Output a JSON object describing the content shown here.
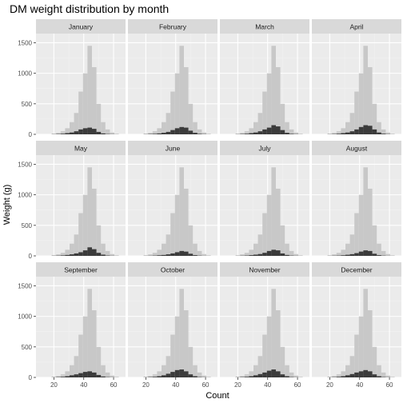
{
  "chart_data": {
    "type": "bar",
    "title": "DM weight distribution by month",
    "xlabel": "Count",
    "ylabel": "Weight (g)",
    "xlim": [
      8,
      68
    ],
    "ylim": [
      0,
      1650
    ],
    "x_ticks": [
      20,
      40,
      60
    ],
    "y_ticks": [
      0,
      500,
      1000,
      1500
    ],
    "grid": true,
    "colors": {
      "panel_background": "#ebebeb",
      "strip_background": "#d9d9d9",
      "grid_major": "#ffffff",
      "grid_minor": "#f2f2f2",
      "all_data_bars": "#c8c8c8",
      "month_bars": "#3b3b3b"
    },
    "bin_centers": [
      14,
      17,
      20,
      23,
      26,
      29,
      32,
      35,
      38,
      41,
      44,
      47,
      50,
      53,
      56,
      59,
      62,
      65
    ],
    "all_data_values": [
      0,
      0,
      10,
      25,
      50,
      100,
      200,
      350,
      700,
      1000,
      1450,
      1100,
      500,
      200,
      80,
      30,
      10,
      0
    ],
    "panels": [
      {
        "month": "January",
        "values": [
          0,
          0,
          2,
          5,
          10,
          20,
          30,
          50,
          80,
          100,
          110,
          90,
          40,
          15,
          5,
          2,
          0,
          0
        ]
      },
      {
        "month": "February",
        "values": [
          0,
          0,
          2,
          5,
          8,
          15,
          25,
          40,
          70,
          100,
          120,
          110,
          60,
          25,
          8,
          3,
          0,
          0
        ]
      },
      {
        "month": "March",
        "values": [
          0,
          0,
          2,
          5,
          10,
          20,
          30,
          50,
          80,
          110,
          150,
          130,
          70,
          25,
          8,
          3,
          0,
          0
        ]
      },
      {
        "month": "April",
        "values": [
          0,
          0,
          2,
          4,
          10,
          20,
          30,
          50,
          80,
          120,
          150,
          140,
          80,
          30,
          10,
          3,
          0,
          0
        ]
      },
      {
        "month": "May",
        "values": [
          0,
          0,
          2,
          4,
          8,
          15,
          25,
          40,
          60,
          90,
          140,
          110,
          50,
          20,
          6,
          2,
          0,
          0
        ]
      },
      {
        "month": "June",
        "values": [
          0,
          0,
          1,
          2,
          5,
          10,
          15,
          25,
          40,
          60,
          80,
          70,
          35,
          12,
          4,
          1,
          0,
          0
        ]
      },
      {
        "month": "July",
        "values": [
          0,
          0,
          1,
          3,
          6,
          12,
          20,
          30,
          50,
          80,
          100,
          90,
          40,
          15,
          5,
          2,
          0,
          0
        ]
      },
      {
        "month": "August",
        "values": [
          0,
          0,
          1,
          3,
          5,
          10,
          18,
          28,
          45,
          70,
          90,
          80,
          35,
          12,
          4,
          1,
          0,
          0
        ]
      },
      {
        "month": "September",
        "values": [
          0,
          0,
          2,
          5,
          10,
          20,
          35,
          50,
          70,
          90,
          100,
          80,
          40,
          15,
          5,
          2,
          0,
          0
        ]
      },
      {
        "month": "October",
        "values": [
          0,
          0,
          2,
          5,
          10,
          20,
          35,
          60,
          90,
          120,
          130,
          100,
          50,
          20,
          6,
          2,
          0,
          0
        ]
      },
      {
        "month": "November",
        "values": [
          0,
          0,
          2,
          5,
          10,
          20,
          35,
          55,
          80,
          110,
          130,
          100,
          50,
          20,
          6,
          2,
          0,
          0
        ]
      },
      {
        "month": "December",
        "values": [
          0,
          0,
          2,
          4,
          10,
          20,
          35,
          55,
          80,
          100,
          120,
          100,
          50,
          20,
          6,
          2,
          0,
          0
        ]
      }
    ]
  }
}
